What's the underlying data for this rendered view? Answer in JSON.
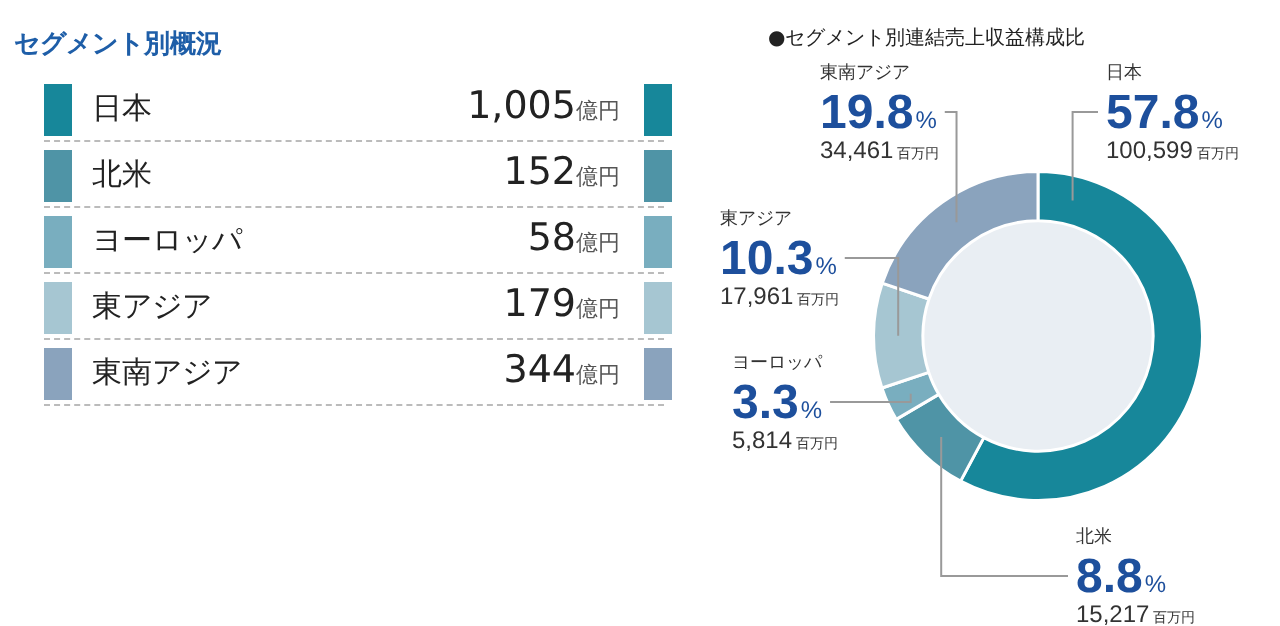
{
  "chart_data": [
    {
      "type": "other",
      "title": "セグメント別概況",
      "categories": [
        "日本",
        "北米",
        "ヨーロッパ",
        "東アジア",
        "東南アジア"
      ],
      "value_labels": [
        "1,005億円",
        "152億円",
        "58億円",
        "179億円",
        "344億円"
      ],
      "colors": [
        "#17879a",
        "#4f94a6",
        "#79aebf",
        "#a6c6d2",
        "#8aa3bd"
      ]
    },
    {
      "type": "donut",
      "title": "●セグメント別連結売上収益構成比",
      "categories": [
        "日本",
        "北米",
        "ヨーロッパ",
        "東アジア",
        "東南アジア"
      ],
      "values": [
        100599,
        15217,
        5814,
        17961,
        34461
      ],
      "value_labels": [
        "57.8%\n100,599百万円",
        "8.8%\n15,217百万円",
        "3.3%\n5,814百万円",
        "10.3%\n17,961百万円",
        "19.8%\n34,461百万円"
      ],
      "colors": [
        "#17879a",
        "#4f94a6",
        "#79aebf",
        "#a6c6d2",
        "#8aa3bd"
      ]
    }
  ]
}
